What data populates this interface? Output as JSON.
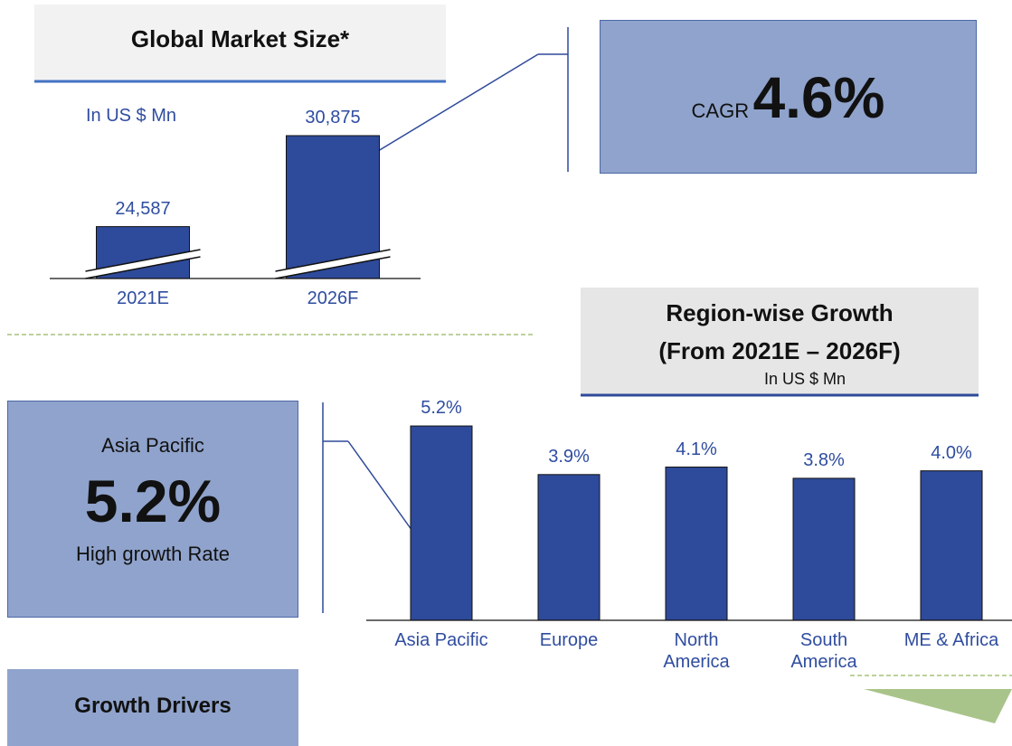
{
  "chart_data": [
    {
      "type": "bar",
      "title": "Global Market Size*",
      "subtitle": "In US $ Mn",
      "categories": [
        "2021E",
        "2026F"
      ],
      "values": [
        24587,
        30875
      ],
      "value_labels": [
        "24,587",
        "30,875"
      ],
      "color": "#2e4a9a",
      "ylim": [
        21000,
        31000
      ],
      "axis_break": true
    },
    {
      "type": "bar",
      "title": "Region-wise Growth",
      "subtitle": "(From 2021E – 2026F)",
      "unit": "In US $ Mn",
      "categories": [
        "Asia Pacific",
        "Europe",
        "North America",
        "South America",
        "ME & Africa"
      ],
      "values": [
        5.2,
        3.9,
        4.1,
        3.8,
        4.0
      ],
      "value_labels": [
        "5.2%",
        "3.9%",
        "4.1%",
        "3.8%",
        "4.0%"
      ],
      "color": "#2e4a9a",
      "ylim": [
        0,
        6
      ]
    }
  ],
  "cagr": {
    "label": "CAGR",
    "value": "4.6%"
  },
  "highlight": {
    "region": "Asia Pacific",
    "value": "5.2%",
    "caption": "High growth Rate"
  },
  "growth_drivers": "Growth Drivers"
}
